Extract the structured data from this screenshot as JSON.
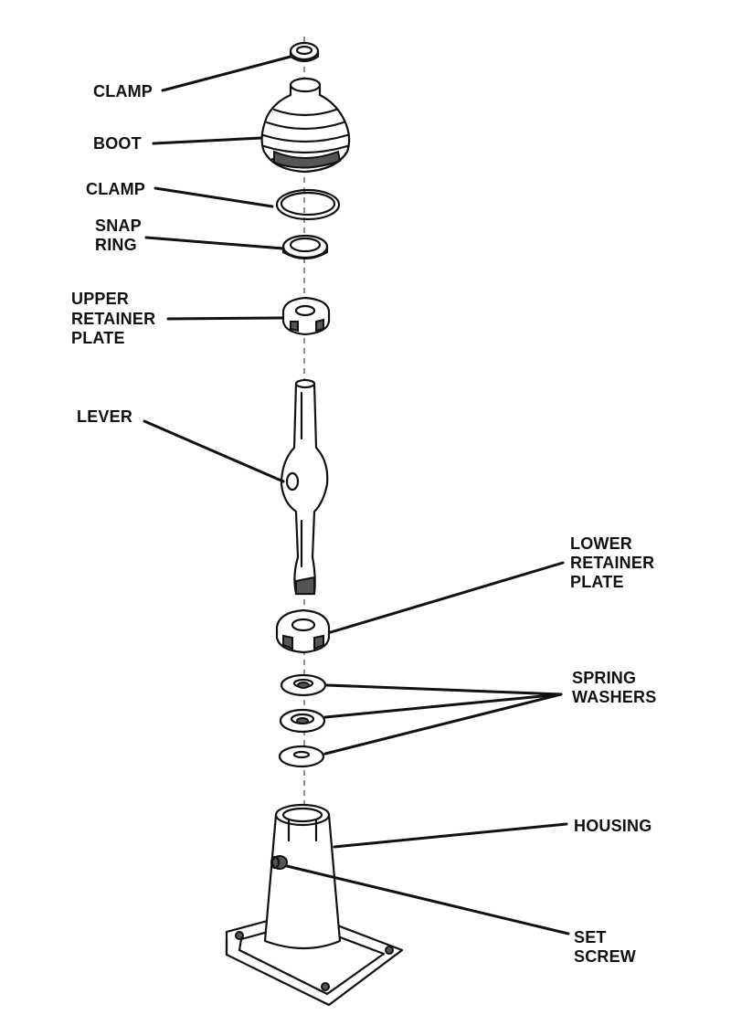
{
  "labels": {
    "clamp_top": "CLAMP",
    "boot": "BOOT",
    "clamp_mid": "CLAMP",
    "snap_ring_1": "SNAP",
    "snap_ring_2": "RING",
    "upper_plate_1": "UPPER",
    "upper_plate_2": "RETAINER",
    "upper_plate_3": "PLATE",
    "lever": "LEVER",
    "lower_plate_1": "LOWER",
    "lower_plate_2": "RETAINER",
    "lower_plate_3": "PLATE",
    "spring_washers_1": "SPRING",
    "spring_washers_2": "WASHERS",
    "housing": "HOUSING",
    "set_screw_1": "SET",
    "set_screw_2": "SCREW"
  }
}
